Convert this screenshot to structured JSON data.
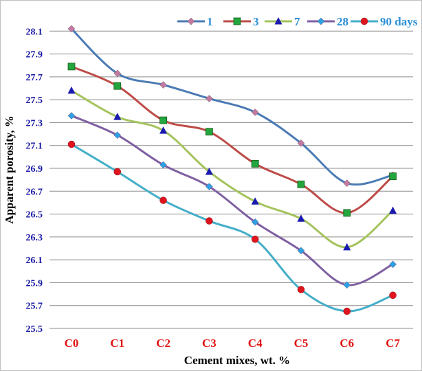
{
  "chart_data": {
    "type": "line",
    "title": "",
    "xlabel": "Cement mixes, wt. %",
    "ylabel": "Apparent porosity, %",
    "categories": [
      "C0",
      "C1",
      "C2",
      "C3",
      "C4",
      "C5",
      "C6",
      "C7"
    ],
    "ylim": [
      25.5,
      28.3
    ],
    "yticks": [
      "25.5",
      "25.7",
      "25.9",
      "26.1",
      "26.3",
      "26.5",
      "26.7",
      "26.9",
      "27.1",
      "27.3",
      "27.5",
      "27.7",
      "27.9",
      "28.1"
    ],
    "ytick_values": [
      25.5,
      25.7,
      25.9,
      26.1,
      26.3,
      26.5,
      26.7,
      26.9,
      27.1,
      27.3,
      27.5,
      27.7,
      27.9,
      28.1
    ],
    "grid": "horizontal",
    "legend_position": "top-right",
    "series": [
      {
        "name": "1",
        "values": [
          28.12,
          27.73,
          27.63,
          27.51,
          27.39,
          27.12,
          26.77,
          26.84
        ],
        "line_color": "#4a7ab4",
        "marker": "diamond",
        "marker_color": "#c27ba0"
      },
      {
        "name": "3",
        "values": [
          27.79,
          27.62,
          27.32,
          27.22,
          26.94,
          26.76,
          26.51,
          26.83
        ],
        "line_color": "#bd4b47",
        "marker": "square",
        "marker_color": "#22a63d"
      },
      {
        "name": "7",
        "values": [
          27.58,
          27.35,
          27.23,
          26.87,
          26.61,
          26.46,
          26.21,
          26.53
        ],
        "line_color": "#a4c35d",
        "marker": "triangle",
        "marker_color": "#1a1ab0"
      },
      {
        "name": "28",
        "values": [
          27.36,
          27.19,
          26.93,
          26.74,
          26.43,
          26.18,
          25.88,
          26.06
        ],
        "line_color": "#7f5fa2",
        "marker": "diamond",
        "marker_color": "#2ea1e6"
      },
      {
        "name": "90 days",
        "values": [
          27.11,
          26.87,
          26.62,
          26.44,
          26.28,
          25.84,
          25.65,
          25.79
        ],
        "line_color": "#44aec8",
        "marker": "circle",
        "marker_color": "#e0141e"
      }
    ],
    "colors": {
      "ytick_text": "#1a1aa6",
      "xtick_text": "#e01414",
      "ylabel_text": "#e01414",
      "xlabel_text": "#1a1aa6",
      "legend_text": "#2a8fd6",
      "grid": "#8c8c8c"
    }
  }
}
